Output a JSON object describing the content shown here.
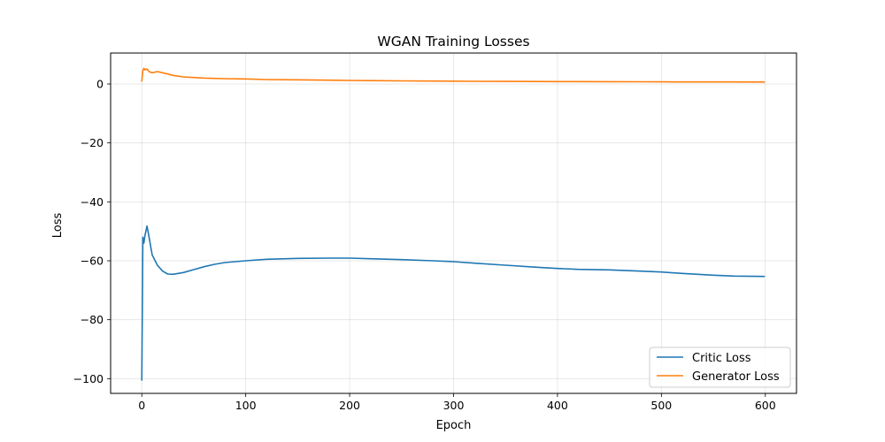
{
  "chart_data": {
    "type": "line",
    "title": "WGAN Training Losses",
    "xlabel": "Epoch",
    "ylabel": "Loss",
    "xlim": [
      -30,
      630
    ],
    "ylim": [
      -105,
      10.5
    ],
    "xticks": [
      0,
      100,
      200,
      300,
      400,
      500,
      600
    ],
    "yticks": [
      0,
      -20,
      -40,
      -60,
      -80,
      -100
    ],
    "ytick_labels": [
      "0",
      "−20",
      "−40",
      "−60",
      "−80",
      "−100"
    ],
    "grid": true,
    "legend_position": "lower-right",
    "series": [
      {
        "name": "Critic Loss",
        "color": "#1f77b4",
        "x": [
          0,
          1,
          2,
          3,
          5,
          7,
          10,
          15,
          20,
          25,
          30,
          40,
          50,
          60,
          70,
          80,
          100,
          120,
          150,
          180,
          200,
          220,
          250,
          280,
          300,
          320,
          350,
          380,
          400,
          420,
          450,
          480,
          500,
          520,
          550,
          570,
          599
        ],
        "y": [
          -100.5,
          -52,
          -54,
          -51.5,
          -48.2,
          -52,
          -58,
          -61.5,
          -63.5,
          -64.5,
          -64.6,
          -64,
          -63,
          -62,
          -61.2,
          -60.6,
          -60,
          -59.5,
          -59.2,
          -59.1,
          -59.1,
          -59.3,
          -59.6,
          -60,
          -60.3,
          -60.8,
          -61.5,
          -62.2,
          -62.6,
          -62.9,
          -63.1,
          -63.5,
          -63.8,
          -64.3,
          -64.9,
          -65.2,
          -65.3
        ]
      },
      {
        "name": "Generator Loss",
        "color": "#ff7f0e",
        "x": [
          0,
          1,
          2,
          3,
          5,
          7,
          10,
          15,
          20,
          25,
          30,
          40,
          50,
          60,
          70,
          80,
          100,
          120,
          150,
          180,
          200,
          220,
          250,
          280,
          300,
          320,
          350,
          380,
          400,
          420,
          450,
          480,
          500,
          520,
          550,
          570,
          599
        ],
        "y": [
          1,
          4.5,
          5.3,
          4.8,
          5.1,
          4.2,
          3.8,
          4.2,
          3.8,
          3.4,
          2.9,
          2.4,
          2.2,
          2.0,
          1.9,
          1.8,
          1.7,
          1.5,
          1.4,
          1.3,
          1.2,
          1.15,
          1.05,
          1.0,
          0.95,
          0.9,
          0.88,
          0.85,
          0.8,
          0.8,
          0.78,
          0.75,
          0.72,
          0.7,
          0.7,
          0.68,
          0.65
        ]
      }
    ]
  }
}
